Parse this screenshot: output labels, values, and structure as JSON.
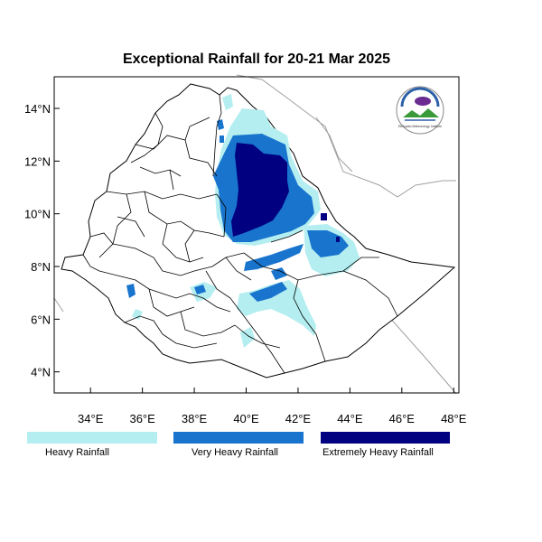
{
  "title": "Exceptional Rainfall for 20-21 Mar 2025",
  "map": {
    "region": "Ethiopia",
    "lon_range": [
      32.6,
      48.2
    ],
    "lat_range": [
      3.2,
      15.2
    ],
    "x_ticks": [
      {
        "value": 34,
        "label": "34°E"
      },
      {
        "value": 36,
        "label": "36°E"
      },
      {
        "value": 38,
        "label": "38°E"
      },
      {
        "value": 40,
        "label": "40°E"
      },
      {
        "value": 42,
        "label": "42°E"
      },
      {
        "value": 44,
        "label": "44°E"
      },
      {
        "value": 46,
        "label": "46°E"
      },
      {
        "value": 48,
        "label": "48°E"
      }
    ],
    "y_ticks": [
      {
        "value": 4,
        "label": "4°N"
      },
      {
        "value": 6,
        "label": "6°N"
      },
      {
        "value": 8,
        "label": "8°N"
      },
      {
        "value": 10,
        "label": "10°N"
      },
      {
        "value": 12,
        "label": "12°N"
      },
      {
        "value": 14,
        "label": "14°N"
      }
    ],
    "logo_text": "Ethiopian Meteorology Institute"
  },
  "categories": [
    {
      "key": "heavy",
      "label": "Heavy Rainfall",
      "color": "#b4eef0"
    },
    {
      "key": "very_heavy",
      "label": "Very Heavy Rainfall",
      "color": "#1874cd"
    },
    {
      "key": "extreme",
      "label": "Extremely Heavy Rainfall",
      "color": "#000080"
    }
  ],
  "colors": {
    "country_fill": "#ffffff",
    "border": "#000000",
    "neighbor_border": "#a0a0a0"
  }
}
